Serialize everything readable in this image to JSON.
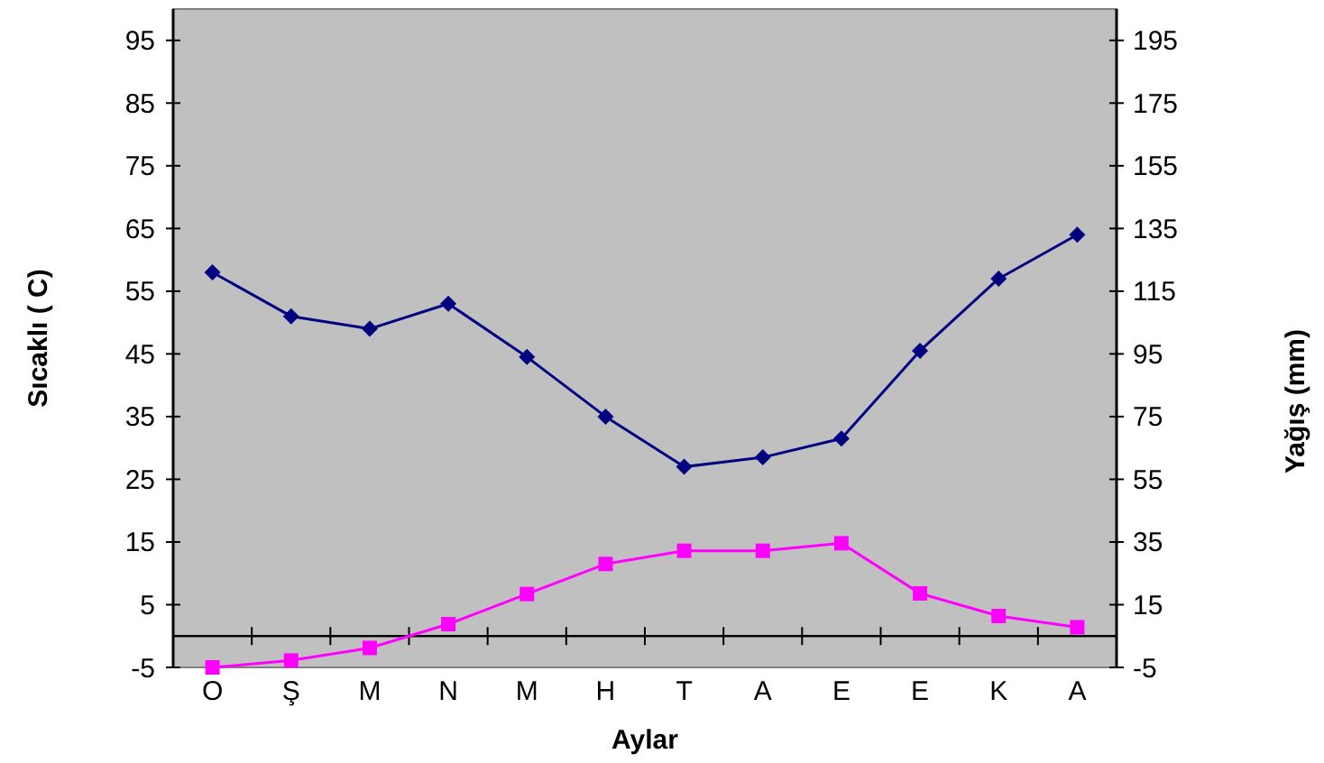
{
  "chart_data": {
    "type": "line",
    "xlabel": "Aylar",
    "ylabel": "Sıcaklı ( C)",
    "y2label": "Yağış (mm)",
    "categories": [
      "O",
      "Ş",
      "M",
      "N",
      "M",
      "H",
      "T",
      "A",
      "E",
      "E",
      "K",
      "A"
    ],
    "series": [
      {
        "color": "#000080",
        "axis": "y2",
        "marker": "diamond",
        "values": [
          121,
          107,
          103,
          111,
          94,
          75,
          59,
          62,
          68,
          96,
          119,
          133
        ]
      },
      {
        "color": "#ff00ff",
        "marker": "square",
        "values": [
          -5,
          -3.9,
          -1.9,
          1.9,
          6.7,
          11.5,
          13.6,
          13.6,
          14.8,
          6.8,
          3.2,
          1.4
        ]
      }
    ],
    "ylim": [
      -5,
      100
    ],
    "yticks": [
      -5,
      5,
      15,
      25,
      35,
      45,
      55,
      65,
      75,
      85,
      95
    ],
    "y2lim": [
      -5,
      205
    ],
    "y2ticks": [
      -5,
      15,
      35,
      55,
      75,
      95,
      115,
      135,
      155,
      175,
      195
    ],
    "ref_lines": [
      {
        "axis": "y",
        "value": 0,
        "color": "#000000"
      }
    ],
    "grid": false
  }
}
